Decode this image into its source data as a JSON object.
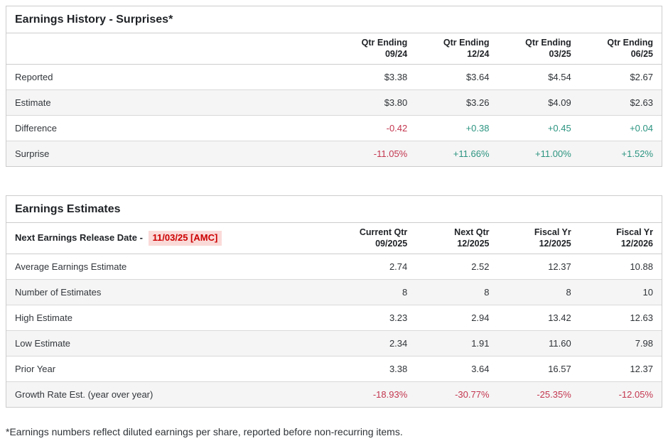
{
  "colors": {
    "negative_text": "#c3364f",
    "positive_text": "#2b9480",
    "release_date_text": "#cc0000",
    "release_date_highlight": "#fadad8",
    "row_stripe": "#f5f5f5",
    "table_border": "#cccccc",
    "heading_text": "#1f2226",
    "body_text": "#2f3337"
  },
  "earnings_history": {
    "title": "Earnings History - Surprises*",
    "columns": [
      {
        "l1": "Qtr Ending",
        "l2": "09/24"
      },
      {
        "l1": "Qtr Ending",
        "l2": "12/24"
      },
      {
        "l1": "Qtr Ending",
        "l2": "03/25"
      },
      {
        "l1": "Qtr Ending",
        "l2": "06/25"
      }
    ],
    "rows": [
      {
        "label": "Reported",
        "values": [
          "$3.38",
          "$3.64",
          "$4.54",
          "$2.67"
        ]
      },
      {
        "label": "Estimate",
        "values": [
          "$3.80",
          "$3.26",
          "$4.09",
          "$2.63"
        ]
      },
      {
        "label": "Difference",
        "values": [
          "-0.42",
          "+0.38",
          "+0.45",
          "+0.04"
        ]
      },
      {
        "label": "Surprise",
        "values": [
          "-11.05%",
          "+11.66%",
          "+11.00%",
          "+1.52%"
        ]
      }
    ]
  },
  "earnings_estimates": {
    "title": "Earnings Estimates",
    "release_label": "Next Earnings Release Date - ",
    "release_date": "11/03/25 [AMC]",
    "columns": [
      {
        "l1": "Current Qtr",
        "l2": "09/2025"
      },
      {
        "l1": "Next Qtr",
        "l2": "12/2025"
      },
      {
        "l1": "Fiscal Yr",
        "l2": "12/2025"
      },
      {
        "l1": "Fiscal Yr",
        "l2": "12/2026"
      }
    ],
    "rows": [
      {
        "label": "Average Earnings Estimate",
        "values": [
          "2.74",
          "2.52",
          "12.37",
          "10.88"
        ]
      },
      {
        "label": "Number of Estimates",
        "values": [
          "8",
          "8",
          "8",
          "10"
        ]
      },
      {
        "label": "High Estimate",
        "values": [
          "3.23",
          "2.94",
          "13.42",
          "12.63"
        ]
      },
      {
        "label": "Low Estimate",
        "values": [
          "2.34",
          "1.91",
          "11.60",
          "7.98"
        ]
      },
      {
        "label": "Prior Year",
        "values": [
          "3.38",
          "3.64",
          "16.57",
          "12.37"
        ]
      },
      {
        "label": "Growth Rate Est. (year over year)",
        "values": [
          "-18.93%",
          "-30.77%",
          "-25.35%",
          "-12.05%"
        ]
      }
    ]
  },
  "footnote": "*Earnings numbers reflect diluted earnings per share, reported before non-recurring items."
}
